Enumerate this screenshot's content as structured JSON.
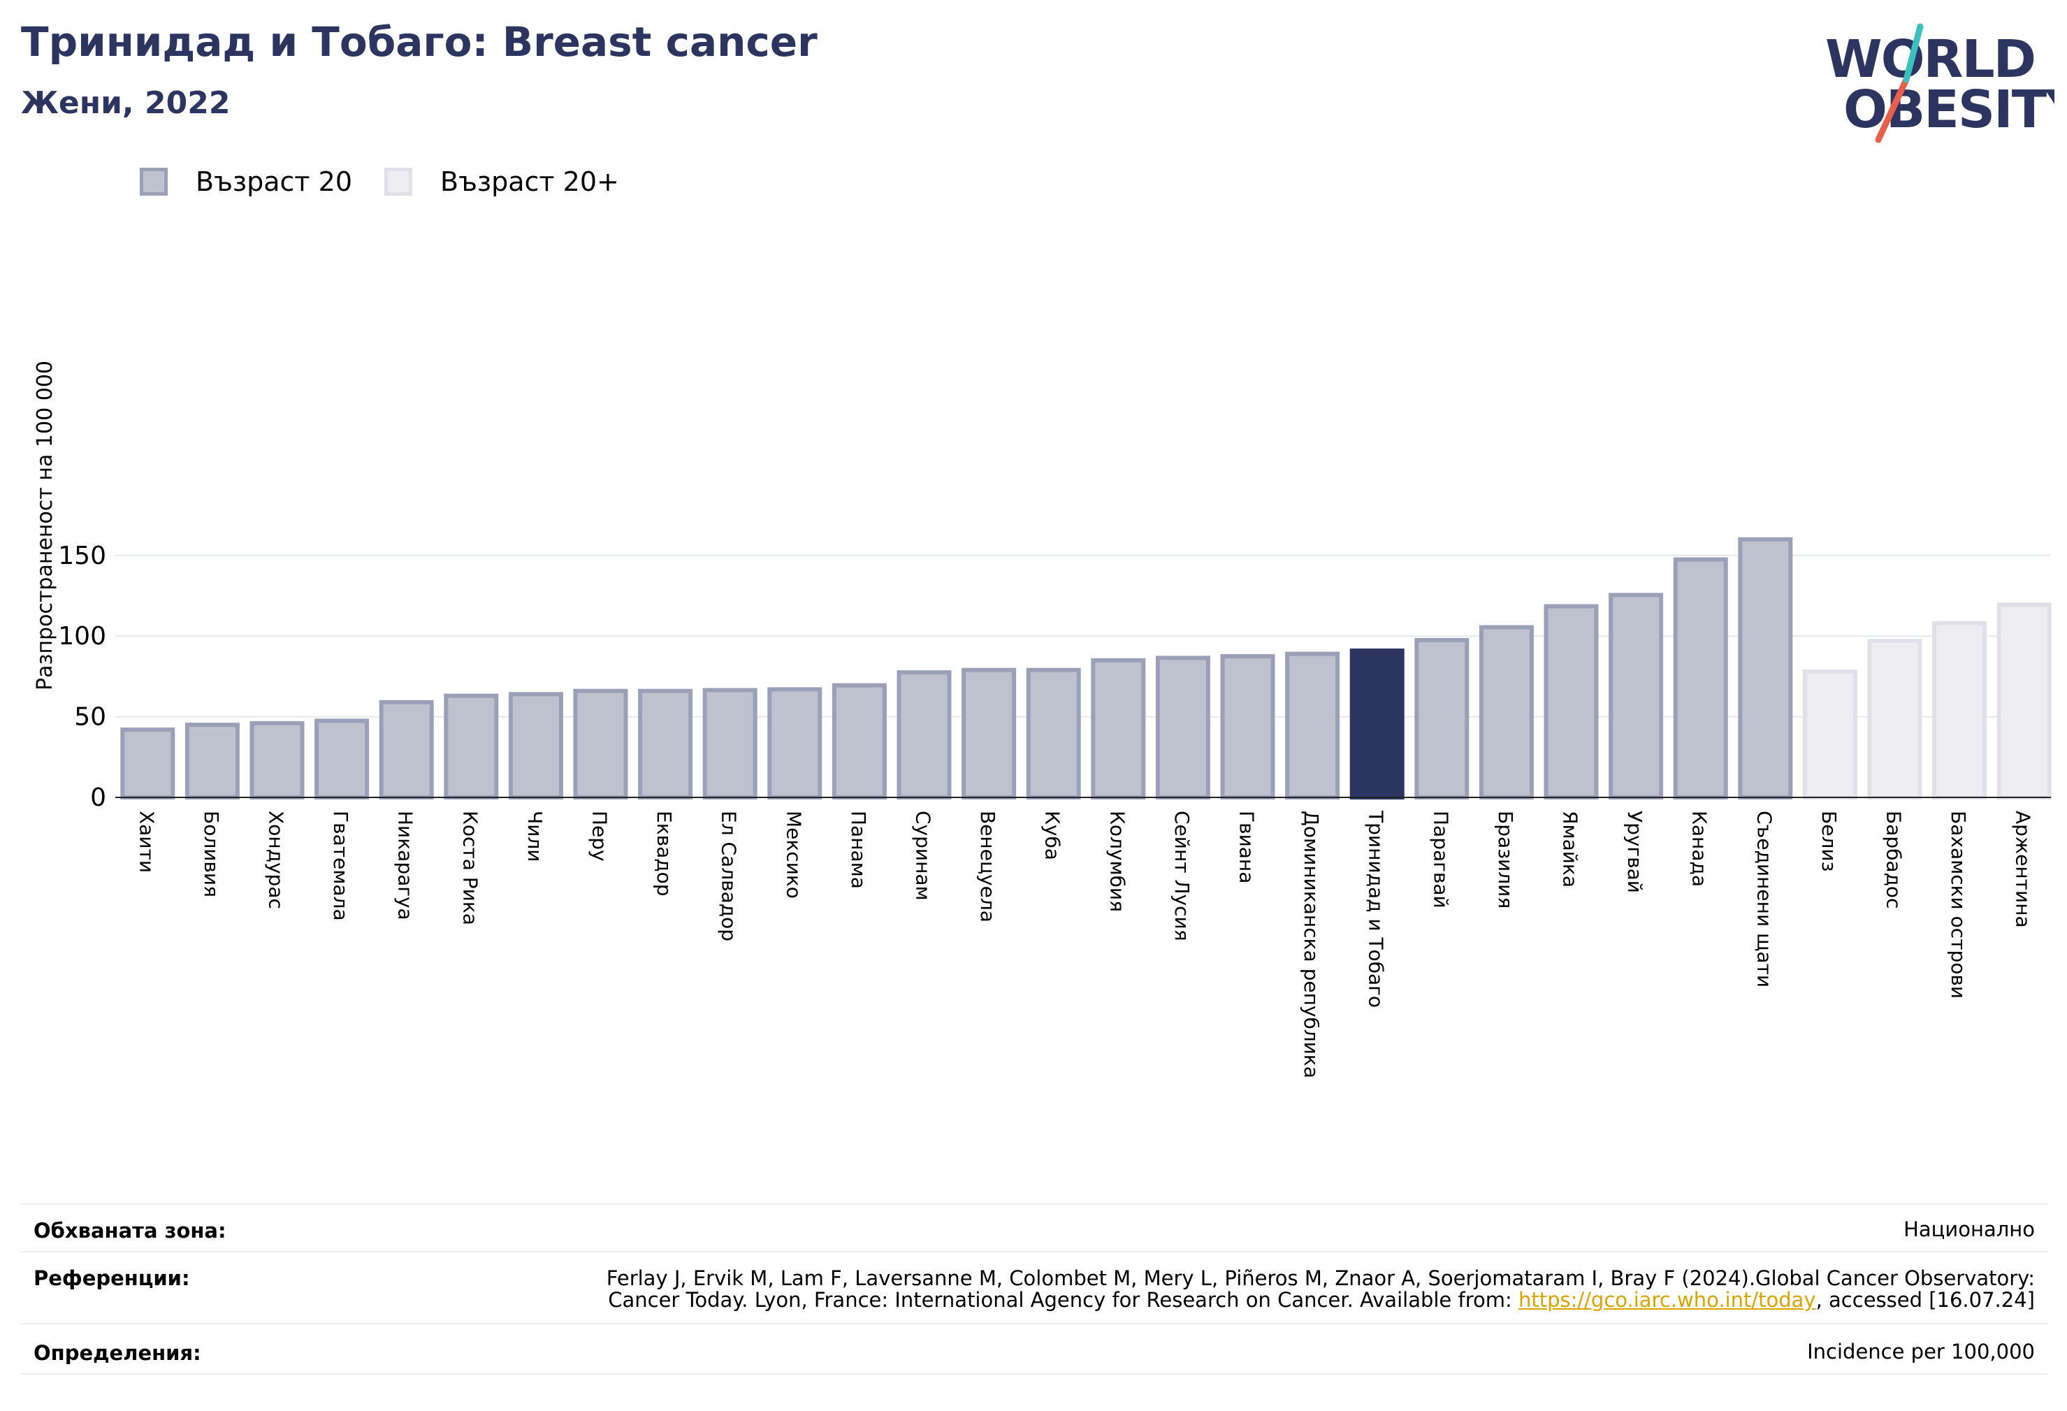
{
  "header": {
    "title": "Тринидад и Тобаго: Breast cancer",
    "subtitle": "Жени, 2022",
    "logo_line1": "WORLD",
    "logo_line2": "OBESITY"
  },
  "legend": {
    "items": [
      {
        "label": "Възраст 20",
        "color": "#bec1ce"
      },
      {
        "label": "Възраст 20+",
        "color": "#eeeef2"
      }
    ]
  },
  "chart_data": {
    "type": "bar",
    "title": "Тринидад и Тобаго: Breast cancer",
    "subtitle": "Жени, 2022",
    "ylabel": "Разпространеност  на 100 000",
    "xlabel": "",
    "ylim": [
      0,
      170
    ],
    "yticks": [
      0,
      50,
      100,
      150
    ],
    "grid": true,
    "legend_position": "top-left",
    "highlight_color": "#2b3560",
    "series": [
      {
        "name": "Възраст 20",
        "color": "#bec1ce",
        "border": "#9aa0b8",
        "categories": [
          "Хаити",
          "Боливия",
          "Хондурас",
          "Гватемала",
          "Никарагуа",
          "Коста Рика",
          "Чили",
          "Перу",
          "Еквадор",
          "Ел Салвадор",
          "Мексико",
          "Панама",
          "Суринам",
          "Венецуела",
          "Куба",
          "Колумбия",
          "Сейнт Лусия",
          "Гвиана",
          "Доминиканска република",
          "Тринидад и Тобаго",
          "Парагвай",
          "Бразилия",
          "Ямайка",
          "Уругвай",
          "Канада",
          "Съединени щати"
        ],
        "values": [
          42,
          45,
          46,
          47.5,
          59,
          63,
          64,
          66,
          66,
          66.5,
          67,
          69.5,
          77.5,
          79,
          79,
          85,
          86.5,
          87.5,
          89,
          91,
          97.5,
          105.5,
          118.5,
          125.5,
          147.5,
          160
        ]
      },
      {
        "name": "Възраст 20+",
        "color": "#eeeef2",
        "border": "#e0e1e8",
        "categories": [
          "Белиз",
          "Барбадос",
          "Бахамски острови",
          "Аржентина"
        ],
        "values": [
          78,
          97,
          108,
          119.5
        ]
      }
    ],
    "highlight_category": "Тринидад и Тобаго"
  },
  "footer": {
    "rows": [
      {
        "label": "Обхваната зона:",
        "value": "Национално"
      },
      {
        "label": "Референции:",
        "value_line1": "Ferlay J, Ervik M, Lam F, Laversanne M, Colombet M, Mery L, Piñeros M, Znaor A, Soerjomataram I, Bray F (2024).Global Cancer Observatory:",
        "value_line2_prefix": "Cancer Today. Lyon, France: International Agency for Research on Cancer. Available from: ",
        "link": "https://gco.iarc.who.int/today",
        "value_line2_suffix": ", accessed [16.07.24]"
      },
      {
        "label": "Определения:",
        "value": "Incidence per 100,000"
      }
    ]
  }
}
